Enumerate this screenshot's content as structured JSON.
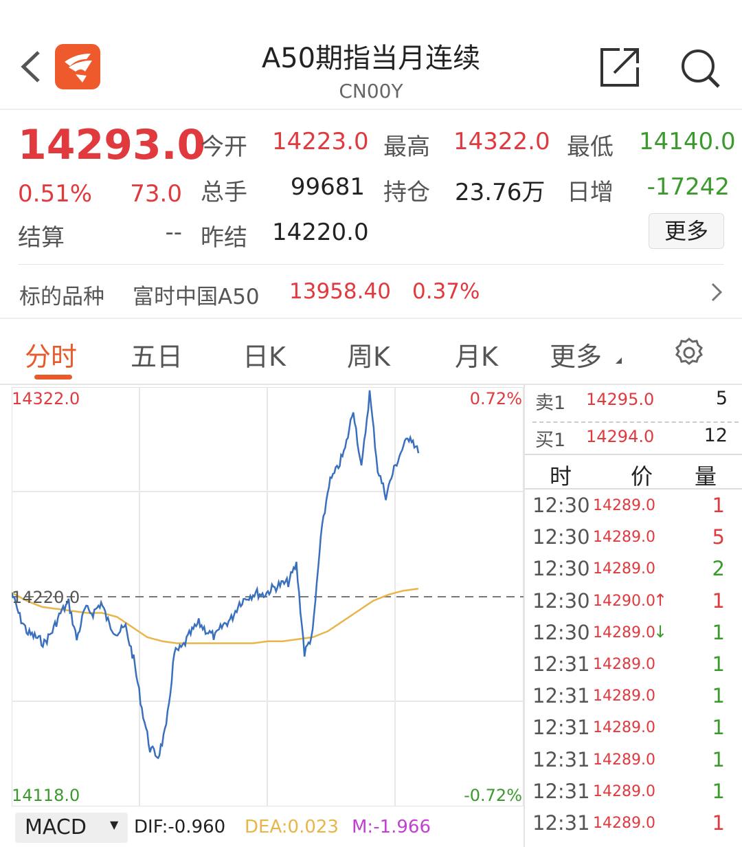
{
  "header": {
    "title": "A50期指当月连续",
    "code": "CN00Y",
    "back_icon": "chevron-left-icon",
    "logo": "app-logo",
    "share_icon": "share-icon",
    "search_icon": "search-icon"
  },
  "quote": {
    "price": "14293.0",
    "change_pct": "0.51%",
    "change": "73.0",
    "settle_label": "结算",
    "settle_value": "--",
    "open_label": "今开",
    "open": "14223.0",
    "high_label": "最高",
    "high": "14322.0",
    "low_label": "最低",
    "low": "14140.0",
    "volume_label": "总手",
    "volume": "99681",
    "oi_label": "持仓",
    "oi": "23.76万",
    "daily_inc_label": "日增",
    "daily_inc": "-17242",
    "prev_settle_label": "昨结",
    "prev_settle": "14220.0",
    "more_label": "更多"
  },
  "underlying": {
    "label": "标的品种",
    "name": "富时中国A50",
    "price": "13958.40",
    "change_pct": "0.37%"
  },
  "tabs": [
    {
      "label": "分时",
      "active": true
    },
    {
      "label": "五日"
    },
    {
      "label": "日K"
    },
    {
      "label": "周K"
    },
    {
      "label": "月K"
    },
    {
      "label": "更多"
    }
  ],
  "settings_icon": "gear-icon",
  "chart": {
    "y_max": "14322.0",
    "y_min": "14118.0",
    "y_ref": "14220.0",
    "pct_max": "0.72%",
    "pct_min": "-0.72%",
    "ylim": [
      14118,
      14322
    ],
    "ref_price": 14220,
    "price": [
      14222,
      14210,
      14202,
      14200,
      14197,
      14203,
      14212,
      14217,
      14199,
      14214,
      14212,
      14217,
      14206,
      14202,
      14205,
      14189,
      14165,
      14145,
      14141,
      14155,
      14192,
      14195,
      14202,
      14207,
      14203,
      14200,
      14206,
      14209,
      14217,
      14220,
      14222,
      14221,
      14224,
      14226,
      14227,
      14236,
      14192,
      14202,
      14249,
      14276,
      14283,
      14293,
      14313,
      14283,
      14321,
      14283,
      14270,
      14283,
      14293,
      14300,
      14291
    ],
    "avg": [
      14222,
      14218,
      14215,
      14214,
      14213,
      14212,
      14212,
      14210,
      14205,
      14200,
      14198,
      14197,
      14197,
      14197,
      14197,
      14197,
      14197,
      14198,
      14198,
      14199,
      14200,
      14203,
      14208,
      14213,
      14218,
      14221,
      14223,
      14224
    ],
    "line_color": "#3a6fbd",
    "avg_color": "#e8b54a"
  },
  "indicator": {
    "name": "MACD",
    "dif": "DIF:-0.960",
    "dea": "DEA:0.023",
    "m": "M:-1.966"
  },
  "orderbook": {
    "ask_label": "卖1",
    "ask_price": "14295.0",
    "ask_vol": "5",
    "bid_label": "买1",
    "bid_price": "14294.0",
    "bid_vol": "12"
  },
  "ticks_header": {
    "time": "时",
    "price": "价",
    "vol": "量"
  },
  "ticks": [
    {
      "time": "12:30",
      "price": "14289.0",
      "arrow": "",
      "vol": "1",
      "vol_color": "red"
    },
    {
      "time": "12:30",
      "price": "14289.0",
      "arrow": "",
      "vol": "5",
      "vol_color": "red"
    },
    {
      "time": "12:30",
      "price": "14289.0",
      "arrow": "",
      "vol": "2",
      "vol_color": "green"
    },
    {
      "time": "12:30",
      "price": "14290.0",
      "arrow": "↑",
      "vol": "1",
      "vol_color": "red"
    },
    {
      "time": "12:30",
      "price": "14289.0",
      "arrow": "↓",
      "vol": "1",
      "vol_color": "green"
    },
    {
      "time": "12:31",
      "price": "14289.0",
      "arrow": "",
      "vol": "1",
      "vol_color": "green"
    },
    {
      "time": "12:31",
      "price": "14289.0",
      "arrow": "",
      "vol": "1",
      "vol_color": "green"
    },
    {
      "time": "12:31",
      "price": "14289.0",
      "arrow": "",
      "vol": "1",
      "vol_color": "green"
    },
    {
      "time": "12:31",
      "price": "14289.0",
      "arrow": "",
      "vol": "1",
      "vol_color": "green"
    },
    {
      "time": "12:31",
      "price": "14289.0",
      "arrow": "",
      "vol": "1",
      "vol_color": "green"
    },
    {
      "time": "12:31",
      "price": "14289.0",
      "arrow": "",
      "vol": "1",
      "vol_color": "red"
    }
  ]
}
